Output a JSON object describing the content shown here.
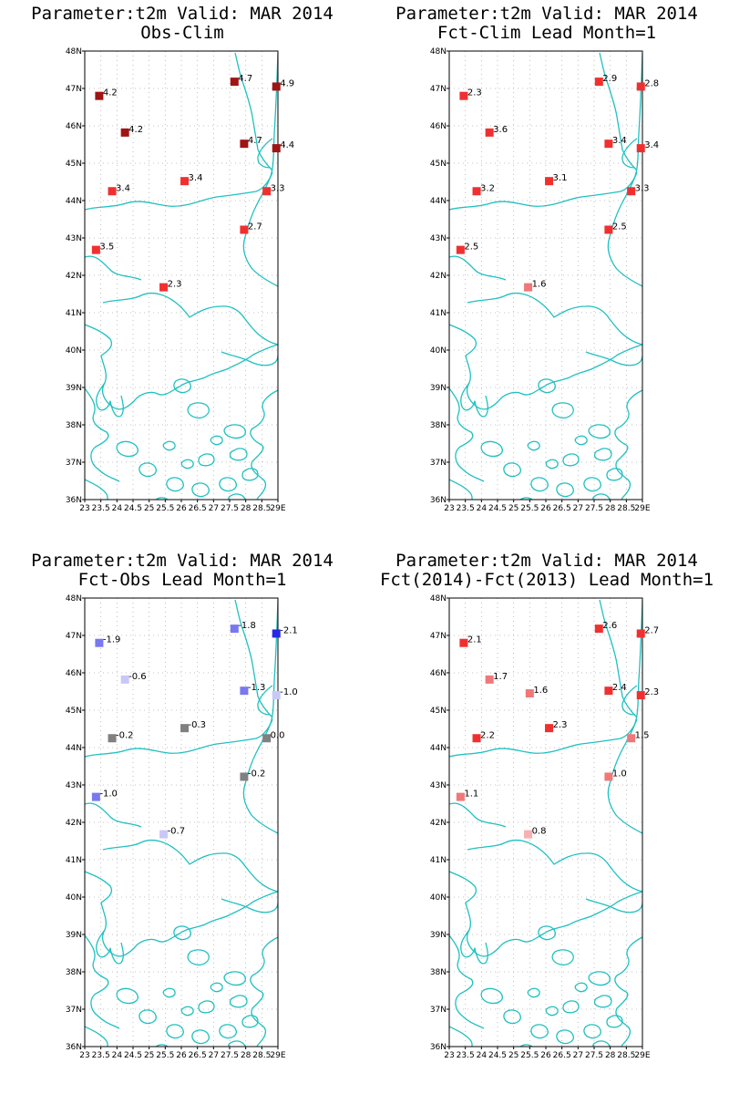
{
  "map": {
    "lat_range": [
      36,
      48
    ],
    "lon_range": [
      23,
      29
    ],
    "lat_ticks": [
      "48N",
      "47N",
      "46N",
      "45N",
      "44N",
      "43N",
      "42N",
      "41N",
      "40N",
      "39N",
      "38N",
      "37N",
      "36N"
    ],
    "lon_ticks": [
      "23",
      "23.5",
      "24",
      "24.5",
      "25",
      "25.5",
      "26",
      "26.5",
      "27",
      "27.5",
      "28",
      "28.5",
      "29E"
    ],
    "coast_color": "#20c0c0",
    "grid": true
  },
  "stations": [
    {
      "lon": 23.45,
      "lat": 46.8
    },
    {
      "lon": 24.25,
      "lat": 45.82
    },
    {
      "lon": 27.65,
      "lat": 47.18
    },
    {
      "lon": 28.95,
      "lat": 47.05
    },
    {
      "lon": 27.95,
      "lat": 45.52
    },
    {
      "lon": 28.95,
      "lat": 45.4
    },
    {
      "lon": 23.85,
      "lat": 44.25
    },
    {
      "lon": 26.1,
      "lat": 44.52
    },
    {
      "lon": 28.65,
      "lat": 44.25
    },
    {
      "lon": 27.95,
      "lat": 43.22
    },
    {
      "lon": 23.35,
      "lat": 42.68
    },
    {
      "lon": 25.45,
      "lat": 41.68
    }
  ],
  "panels": [
    {
      "title1": "Parameter:t2m Valid: MAR 2014",
      "title2": "Obs-Clim",
      "values": [
        "4.2",
        "4.2",
        "4.7",
        "4.9",
        "4.7",
        "4.4",
        "3.4",
        "3.4",
        "3.3",
        "2.7",
        "3.5",
        "2.3"
      ],
      "colors": [
        "#a01414",
        "#a01414",
        "#a01414",
        "#a01414",
        "#a01414",
        "#a01414",
        "#f03030",
        "#f03030",
        "#f03030",
        "#f03030",
        "#f03030",
        "#f03030"
      ]
    },
    {
      "title1": "Parameter:t2m Valid: MAR 2014",
      "title2": "Fct-Clim Lead Month=1",
      "values": [
        "2.3",
        "3.6",
        "2.9",
        "2.8",
        "3.4",
        "3.4",
        "3.2",
        "3.1",
        "3.3",
        "2.5",
        "2.5",
        "1.6"
      ],
      "colors": [
        "#f03030",
        "#f03030",
        "#f03030",
        "#f03030",
        "#f03030",
        "#f03030",
        "#f03030",
        "#f03030",
        "#f03030",
        "#f03030",
        "#f03030",
        "#f07878"
      ]
    },
    {
      "title1": "Parameter:t2m Valid: MAR 2014",
      "title2": "Fct-Obs Lead Month=1",
      "values": [
        "-1.9",
        "-0.6",
        "-1.8",
        "-2.1",
        "-1.3",
        "-1.0",
        "-0.2",
        "-0.3",
        "0.0",
        "-0.2",
        "-1.0",
        "-0.7"
      ],
      "colors": [
        "#7878f0",
        "#c8c8f8",
        "#7878f0",
        "#2828e8",
        "#7878f0",
        "#c8c8f8",
        "#808080",
        "#808080",
        "#808080",
        "#808080",
        "#7878f0",
        "#c8c8f8"
      ]
    },
    {
      "title1": "Parameter:t2m Valid: MAR 2014",
      "title2": "Fct(2014)-Fct(2013) Lead Month=1",
      "values": [
        "2.1",
        "1.7",
        "2.6",
        "2.7",
        "2.4",
        "2.3",
        "2.2",
        "2.3",
        "1.5",
        "1.0",
        "1.1",
        "0.8"
      ],
      "colors": [
        "#f03030",
        "#f07878",
        "#f03030",
        "#f03030",
        "#f03030",
        "#f03030",
        "#f03030",
        "#f03030",
        "#f07878",
        "#f07878",
        "#f07878",
        "#f8b0b0"
      ],
      "extra": {
        "lon": 25.5,
        "lat": 45.45,
        "value": "1.6",
        "color": "#f07878"
      }
    }
  ]
}
